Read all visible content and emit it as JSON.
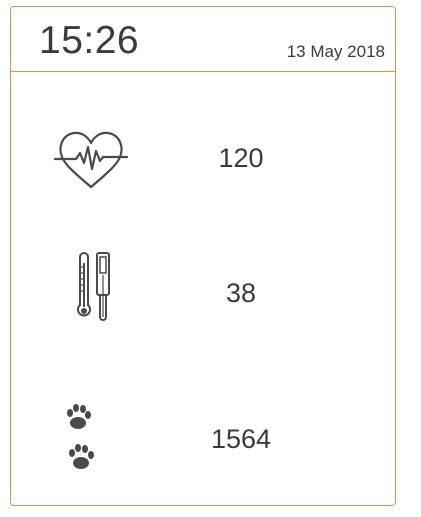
{
  "header": {
    "time": "15:26",
    "date": "13 May 2018"
  },
  "metrics": [
    {
      "name": "heart-rate",
      "icon": "heart-pulse-icon",
      "value": "120"
    },
    {
      "name": "temperature",
      "icon": "thermometer-icon",
      "value": "38"
    },
    {
      "name": "steps",
      "icon": "paw-prints-icon",
      "value": "1564"
    }
  ],
  "colors": {
    "border": "#e0924f",
    "text": "#3b3b3b",
    "icon": "#4a4a4a"
  }
}
